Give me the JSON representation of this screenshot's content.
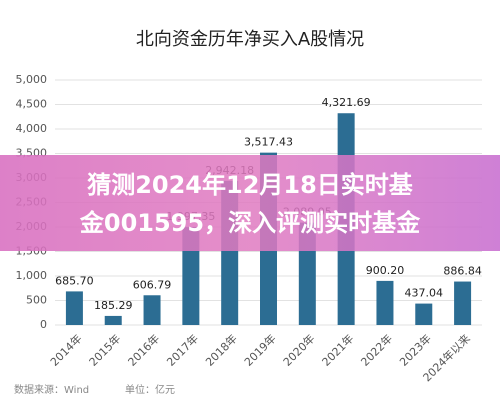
{
  "chart_data": {
    "type": "bar",
    "title": "北向资金历年净买入A股情况",
    "categories": [
      "2014年",
      "2015年",
      "2016年",
      "2017年",
      "2018年",
      "2019年",
      "2020年",
      "2021年",
      "2022年",
      "2023年",
      "2024年以来"
    ],
    "values": [
      685.7,
      185.29,
      606.79,
      1997.35,
      2942.18,
      3517.43,
      2089.05,
      4321.69,
      900.2,
      437.04,
      886.84
    ],
    "value_labels": [
      "685.70",
      "185.29",
      "606.79",
      "1,997.35",
      "2,942.18",
      "3,517.43",
      "2,089.05",
      "4,321.69",
      "900.20",
      "437.04",
      "886.84"
    ],
    "color": "#2c6d93",
    "ylim": [
      0,
      5000
    ],
    "yticks": [
      0,
      500,
      {
        "value": 1000,
        "label": "1,000"
      },
      {
        "value": 1500,
        "label": "1,500"
      },
      {
        "value": 2000,
        "label": "2,000"
      },
      {
        "value": 2500,
        "label": "2,500"
      },
      {
        "value": 3000,
        "label": "3,000"
      },
      {
        "value": 3500,
        "label": "3,500"
      },
      {
        "value": 4000,
        "label": "4,000"
      },
      {
        "value": 4500,
        "label": "4,500"
      },
      {
        "value": 5000,
        "label": "5,000"
      }
    ],
    "grid": true,
    "source": "数据来源：Wind",
    "unit": "单位：亿元"
  },
  "overlay": {
    "lines": [
      "猜测2024年12月18日实时基",
      "金001595，深入评测实时基金"
    ]
  }
}
